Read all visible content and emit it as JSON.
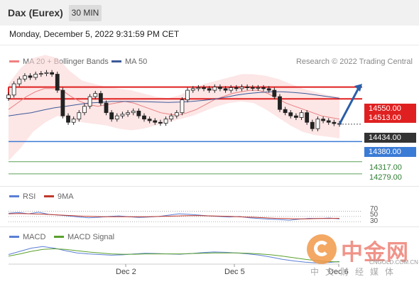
{
  "header": {
    "instrument": "Dax (Eurex)",
    "timeframe": "30 MIN",
    "datetime": "Monday, December 5, 2022 9:31:59 PM CET"
  },
  "legend": {
    "bollinger": "MA 20 + Bollinger Bands",
    "ma50": "MA 50",
    "bollinger_color": "#f08080",
    "ma50_color": "#3d5a99",
    "research": "Research © 2022 Trading Central"
  },
  "price_levels": [
    {
      "label": "14550.00",
      "value": 14550,
      "style": "resistance",
      "color": "#e02020"
    },
    {
      "label": "14513.00",
      "value": 14513,
      "style": "resistance",
      "color": "#e02020"
    },
    {
      "label": "14434.00",
      "value": 14434,
      "style": "last",
      "color": "#333333"
    },
    {
      "label": "14380.00",
      "value": 14380,
      "style": "pivot",
      "color": "#3a7bd5"
    },
    {
      "label": "14317.00",
      "value": 14317,
      "style": "support",
      "color": "#5aa05a"
    },
    {
      "label": "14279.00",
      "value": 14279,
      "style": "support",
      "color": "#5aa05a"
    }
  ],
  "rsi_panel": {
    "legend_rsi": "RSI",
    "legend_9ma": "9MA",
    "rsi_color": "#5b7fd6",
    "ma_color": "#c0392b",
    "levels": [
      "70",
      "50",
      "30"
    ]
  },
  "macd_panel": {
    "legend_macd": "MACD",
    "legend_signal": "MACD Signal",
    "macd_color": "#5b7fd6",
    "signal_color": "#5aa02c"
  },
  "x_axis": {
    "labels": [
      "Dec 2",
      "Dec 5",
      "Dec 6"
    ]
  },
  "watermark": {
    "title": "中金网",
    "url": "CNGOLD.COM.CN",
    "subtitle": "中文财经媒体"
  },
  "chart_data": {
    "type": "candlestick",
    "title": "Dax (Eurex)",
    "timeframe": "30 MIN",
    "ylim": [
      14250,
      14600
    ],
    "closes": [
      14525,
      14560,
      14575,
      14585,
      14580,
      14590,
      14592,
      14595,
      14590,
      14540,
      14460,
      14440,
      14450,
      14470,
      14490,
      14520,
      14530,
      14500,
      14470,
      14450,
      14460,
      14465,
      14470,
      14475,
      14460,
      14450,
      14445,
      14440,
      14437,
      14450,
      14460,
      14470,
      14510,
      14540,
      14545,
      14548,
      14545,
      14540,
      14550,
      14545,
      14540,
      14548,
      14545,
      14550,
      14548,
      14546,
      14548,
      14545,
      14540,
      14520,
      14480,
      14470,
      14460,
      14455,
      14470,
      14440,
      14420,
      14450,
      14445,
      14440,
      14436,
      14434
    ],
    "ma20": [
      14480,
      14500,
      14520,
      14535,
      14545,
      14545,
      14540,
      14520,
      14505,
      14495,
      14490,
      14495,
      14500,
      14505,
      14500,
      14490,
      14480,
      14470,
      14465,
      14462,
      14470,
      14480,
      14495,
      14510,
      14520,
      14530,
      14535,
      14540,
      14540,
      14530,
      14515,
      14500,
      14490,
      14480,
      14470,
      14460,
      14455,
      14450
    ],
    "ma50": [
      14460,
      14465,
      14470,
      14478,
      14485,
      14490,
      14495,
      14500,
      14502,
      14505,
      14505,
      14505,
      14504,
      14503,
      14502,
      14503,
      14505,
      14508,
      14512,
      14518,
      14525,
      14530,
      14533,
      14535,
      14535,
      14533,
      14530,
      14525,
      14520,
      14515
    ],
    "bb_upper": [
      14560,
      14610,
      14640,
      14650,
      14640,
      14600,
      14570,
      14560,
      14550,
      14545,
      14540,
      14530,
      14520,
      14515,
      14525,
      14545,
      14560,
      14570,
      14580,
      14590,
      14590,
      14585,
      14575,
      14560,
      14545,
      14535,
      14525,
      14520
    ],
    "bb_lower": [
      14320,
      14360,
      14410,
      14440,
      14460,
      14450,
      14440,
      14435,
      14430,
      14420,
      14415,
      14420,
      14430,
      14440,
      14450,
      14460,
      14475,
      14490,
      14500,
      14505,
      14500,
      14480,
      14455,
      14430,
      14410,
      14400,
      14395,
      14390
    ],
    "rsi": [
      62,
      65,
      60,
      66,
      58,
      55,
      52,
      48,
      45,
      47,
      50,
      52,
      49,
      46,
      48,
      50,
      55,
      60,
      58,
      55,
      52,
      50,
      48,
      50,
      45,
      42,
      40,
      38,
      36,
      40,
      43,
      42,
      44,
      41
    ],
    "rsi_ma": [
      60,
      61,
      60,
      59,
      57,
      55,
      53,
      51,
      50,
      49,
      49,
      49,
      49,
      49,
      50,
      51,
      52,
      53,
      53,
      52,
      51,
      50,
      48,
      47,
      45,
      43,
      42,
      41,
      41,
      42,
      42,
      43
    ],
    "macd": [
      10,
      20,
      30,
      35,
      30,
      22,
      15,
      12,
      10,
      8,
      9,
      12,
      14,
      13,
      12,
      11,
      13,
      16,
      18,
      17,
      15,
      12,
      8,
      2,
      -5,
      -10,
      -14,
      -16,
      -15,
      -12
    ],
    "macd_signal": [
      5,
      12,
      20,
      26,
      28,
      26,
      22,
      18,
      15,
      12,
      11,
      11,
      12,
      12,
      12,
      12,
      13,
      14,
      15,
      15,
      15,
      14,
      12,
      9,
      5,
      0,
      -5,
      -9,
      -12,
      -13
    ]
  }
}
